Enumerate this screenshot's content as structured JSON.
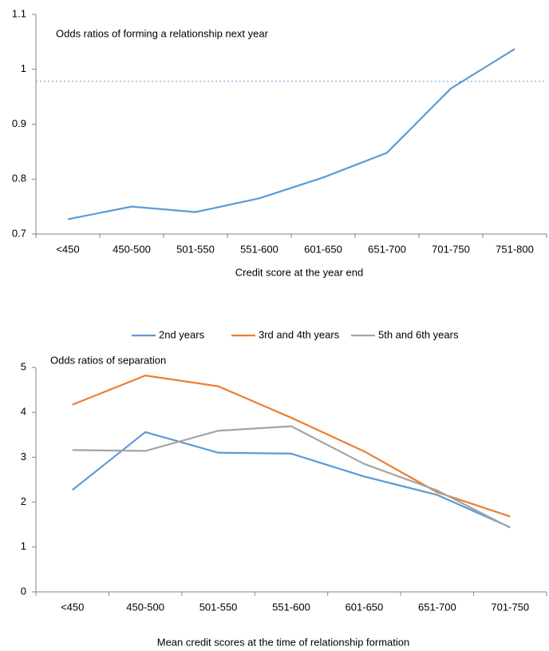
{
  "chart_data": [
    {
      "type": "line",
      "annotation": "Odds ratios of forming a relationship next year",
      "x_label": "Credit score at the year end",
      "categories": [
        "<450",
        "450-500",
        "501-550",
        "551-600",
        "601-650",
        "651-700",
        "701-750",
        "751-800"
      ],
      "values": [
        0.727,
        0.75,
        0.74,
        0.765,
        0.803,
        0.848,
        0.965,
        1.037
      ],
      "color": "#5b9bd5",
      "reference_line": 0.978,
      "ylim": [
        0.7,
        1.1
      ],
      "yticks": [
        0.7,
        0.8,
        0.9,
        1,
        1.1
      ]
    },
    {
      "type": "line",
      "annotation": "Odds ratios of separation",
      "x_label": "Mean credit scores at the time of relationship formation",
      "categories": [
        "<450",
        "450-500",
        "501-550",
        "551-600",
        "601-650",
        "651-700",
        "701-750"
      ],
      "series": [
        {
          "name": "2nd years",
          "color": "#5b9bd5",
          "values": [
            2.27,
            3.56,
            3.1,
            3.08,
            2.57,
            2.16,
            1.44
          ]
        },
        {
          "name": "3rd and 4th years",
          "color": "#ed7d31",
          "values": [
            4.17,
            4.82,
            4.58,
            3.88,
            3.13,
            2.22,
            1.68
          ]
        },
        {
          "name": "5th and 6th years",
          "color": "#a5a5a5",
          "values": [
            3.16,
            3.14,
            3.59,
            3.69,
            2.85,
            2.26,
            1.43
          ]
        }
      ],
      "legend": "top",
      "ylim": [
        0,
        5
      ],
      "yticks": [
        0,
        1,
        2,
        3,
        4,
        5
      ]
    }
  ]
}
